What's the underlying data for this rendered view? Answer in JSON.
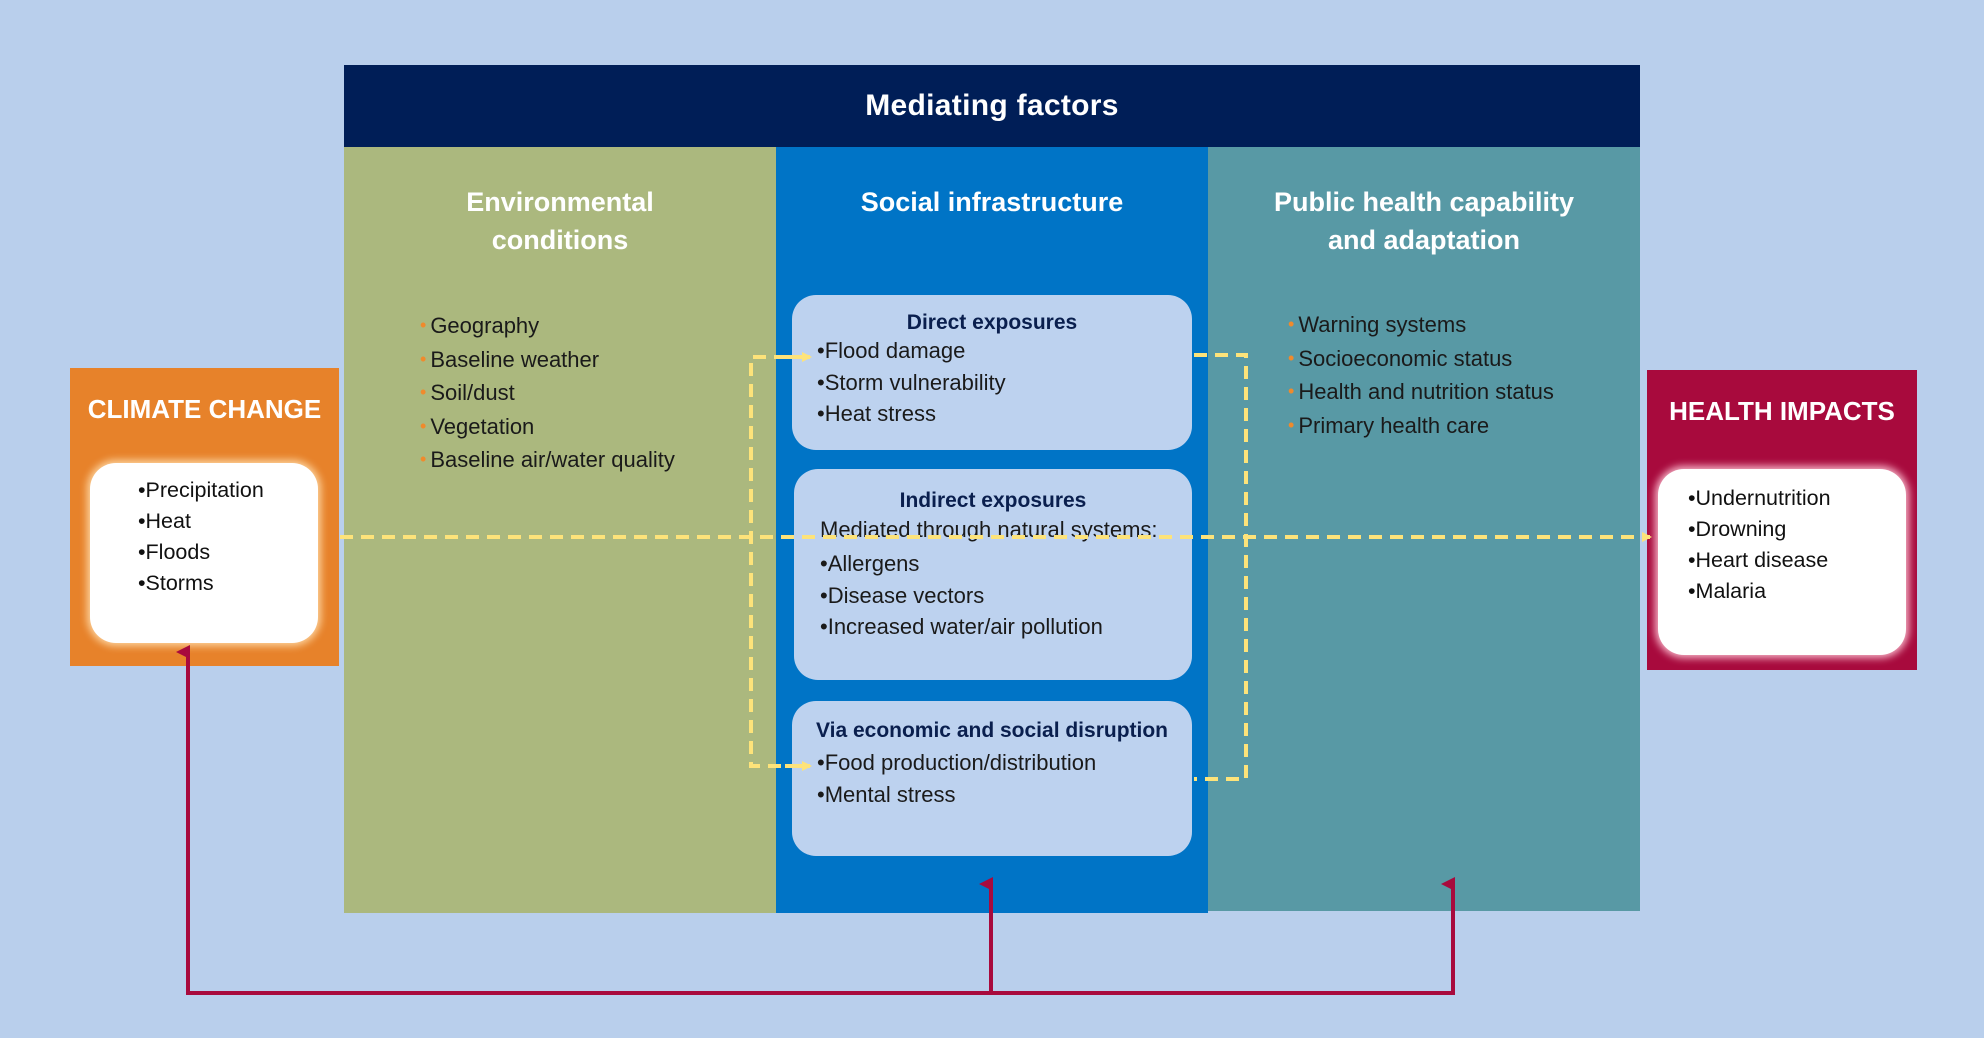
{
  "header": {
    "title": "Mediating  factors"
  },
  "columns": {
    "environmental": {
      "title_line1": "Environmental",
      "title_line2": "conditions",
      "items": [
        "Geography",
        "Baseline weather",
        "Soil/dust",
        "Vegetation",
        "Baseline air/water quality"
      ]
    },
    "social": {
      "title": "Social infrastructure"
    },
    "public_health": {
      "title_line1": "Public health capability",
      "title_line2": "and adaptation",
      "items": [
        "Warning systems",
        "Socioeconomic  status",
        "Health and nutrition status",
        "Primary health care"
      ]
    }
  },
  "exposures": {
    "direct": {
      "title": "Direct exposures",
      "items": [
        "Flood damage",
        "Storm  vulnerability",
        "Heat stress"
      ]
    },
    "indirect": {
      "title": "Indirect exposures",
      "subtitle": "Mediated through  natural systems:",
      "items": [
        "Allergens",
        "Disease vectors",
        "Increased water/air pollution"
      ]
    },
    "economic": {
      "title": "Via economic and social disruption",
      "items": [
        "Food production/distribution",
        "Mental stress"
      ]
    }
  },
  "climate_change": {
    "title": "CLIMATE CHANGE",
    "items": [
      "Precipitation",
      "Heat",
      "Floods",
      "Storms"
    ]
  },
  "health_impacts": {
    "title": "HEALTH IMPACTS",
    "items": [
      "Undernutrition",
      "Drowning",
      "Heart disease",
      "Malaria"
    ]
  },
  "bullet_symbol": "•",
  "colors": {
    "background": "#b9cfec",
    "header": "#001e57",
    "environmental": "#abb87e",
    "social": "#0074c6",
    "public_health": "#5899a5",
    "climate_change": "#e7822a",
    "health_impacts": "#a80a3d",
    "dashed_arrow": "#fde37a",
    "feedback_arrow": "#a80a3d"
  }
}
